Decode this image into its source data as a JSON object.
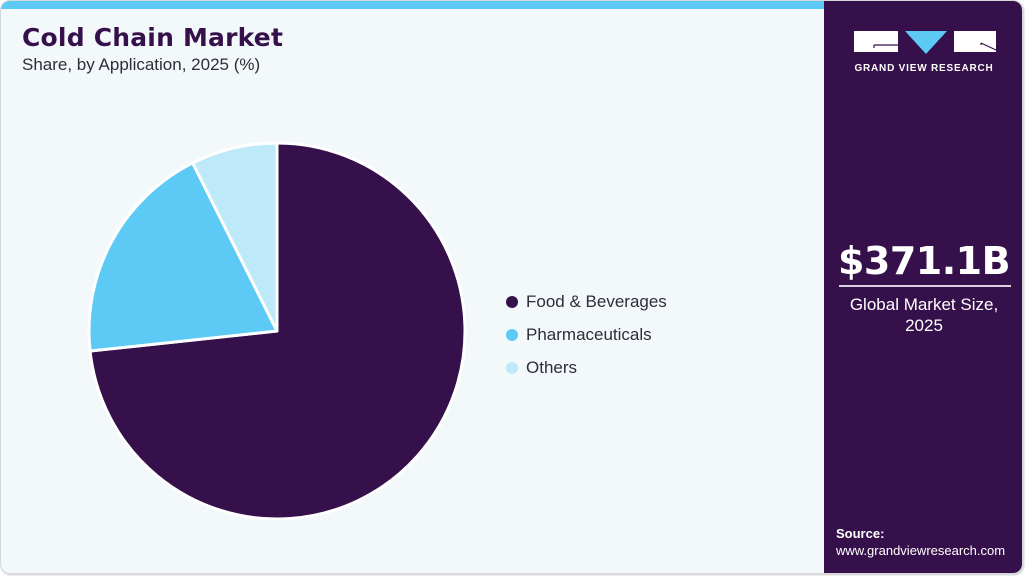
{
  "header": {
    "title": "Cold Chain Market",
    "subtitle": "Share, by Application, 2025 (%)"
  },
  "legend": [
    {
      "label": "Food & Beverages",
      "color": "#36104a"
    },
    {
      "label": "Pharmaceuticals",
      "color": "#5ccaf5"
    },
    {
      "label": "Others",
      "color": "#bde9f8"
    }
  ],
  "sidebar": {
    "logo_text": "GRAND VIEW RESEARCH",
    "market_value": "$371.1B",
    "market_label_line1": "Global Market Size,",
    "market_label_line2": "2025",
    "source_label": "Source:",
    "source_url": "www.grandviewresearch.com"
  },
  "colors": {
    "brand_dark": "#36104a",
    "accent_blue": "#5ccaf5",
    "light_blue": "#bde9f8",
    "background": "#f3f8fb"
  },
  "chart_data": {
    "type": "pie",
    "title": "Cold Chain Market",
    "subtitle": "Share, by Application, 2025 (%)",
    "categories": [
      "Food & Beverages",
      "Pharmaceuticals",
      "Others"
    ],
    "values": [
      73.3,
      19.3,
      7.4
    ],
    "colors": [
      "#36104a",
      "#5ccaf5",
      "#bde9f8"
    ],
    "start_angle": "12 o'clock, clockwise",
    "legend_position": "right"
  }
}
